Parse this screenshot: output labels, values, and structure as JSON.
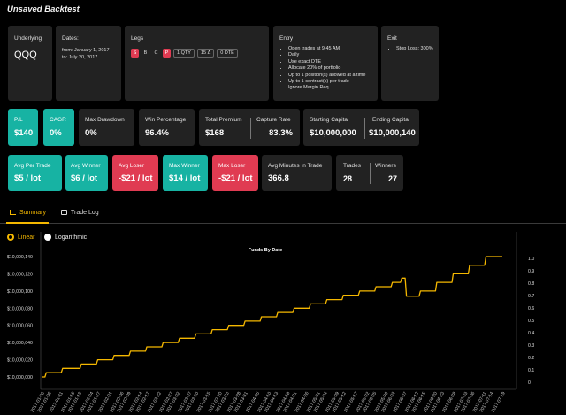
{
  "page": {
    "title": "Unsaved Backtest"
  },
  "info": {
    "underlying": {
      "label": "Underlying",
      "value": "QQQ"
    },
    "dates": {
      "label": "Dates:",
      "from": "from: January 1, 2017",
      "to": "to: July 20, 2017"
    },
    "legs": {
      "label": "Legs",
      "chips": [
        "S",
        "B",
        "C",
        "P"
      ],
      "qty": "1",
      "qty_unit": "QTY",
      "delta": "15",
      "delta_symbol": "Δ",
      "dte": "0",
      "dte_unit": "DTE"
    },
    "entry": {
      "label": "Entry",
      "items": [
        "Open trades at 9:45 AM",
        "Daily",
        "Use exact DTE",
        "Allocate 20% of portfolio",
        "Up to 1 position(s) allowed at a time",
        "Up to 1 contract(s) per trade",
        "Ignore Margin Req."
      ]
    },
    "exit": {
      "label": "Exit",
      "items": [
        "Stop Loss: 300%"
      ]
    }
  },
  "stats": {
    "pl": {
      "label": "P/L",
      "value": "$140"
    },
    "cagr": {
      "label": "CAGR",
      "value": "0%"
    },
    "max_drawdown": {
      "label": "Max Drawdown",
      "value": "0%"
    },
    "win_percentage": {
      "label": "Win Percentage",
      "value": "96.4%"
    },
    "total_premium": {
      "label": "Total Premium",
      "value": "$168"
    },
    "capture_rate": {
      "label": "Capture Rate",
      "value": "83.3%"
    },
    "starting_capital": {
      "label": "Starting Capital",
      "value": "$10,000,000"
    },
    "ending_capital": {
      "label": "Ending Capital",
      "value": "$10,000,140"
    },
    "avg_per_trade": {
      "label": "Avg Per Trade",
      "value": "$5 / lot"
    },
    "avg_winner": {
      "label": "Avg Winner",
      "value": "$6 / lot"
    },
    "avg_loser": {
      "label": "Avg Loser",
      "value": "-$21 / lot"
    },
    "max_winner": {
      "label": "Max Winner",
      "value": "$14 / lot"
    },
    "max_loser": {
      "label": "Max Loser",
      "value": "-$21 / lot"
    },
    "avg_minutes": {
      "label": "Avg Minutes In Trade",
      "value": "366.8"
    },
    "trades": {
      "label": "Trades",
      "value": "28"
    },
    "winners": {
      "label": "Winners",
      "value": "27"
    }
  },
  "tabs": [
    {
      "label": "Summary",
      "icon": "bar-chart-icon",
      "active": true
    },
    {
      "label": "Trade Log",
      "icon": "tray-icon",
      "active": false
    }
  ],
  "scale": {
    "linear": "Linear",
    "logarithmic": "Logarithmic",
    "selected": "Linear"
  },
  "colors": {
    "teal": "#17b3a3",
    "red": "#e03b52",
    "accent": "#f5b800",
    "card": "#222222"
  },
  "chart_data": {
    "type": "line",
    "title": "Funds By Date",
    "xlabel": "",
    "ylabel": "",
    "ylim": [
      10000000,
      10000140
    ],
    "y_ticks": [
      "$10,000,000",
      "$10,000,020",
      "$10,000,040",
      "$10,000,060",
      "$10,000,080",
      "$10,000,100",
      "$10,000,120",
      "$10,000,140"
    ],
    "right_axis_ticks": [
      "0",
      "0.1",
      "0.2",
      "0.3",
      "0.4",
      "0.5",
      "0.6",
      "0.7",
      "0.8",
      "0.9",
      "1.0"
    ],
    "x_ticks": [
      "2017-01-03",
      "2017-01-06",
      "2017-01-11",
      "2017-01-16",
      "2017-01-19",
      "2017-01-24",
      "2017-01-27",
      "2017-02-01",
      "2017-02-06",
      "2017-02-09",
      "2017-02-14",
      "2017-02-17",
      "2017-02-22",
      "2017-02-27",
      "2017-03-02",
      "2017-03-07",
      "2017-03-10",
      "2017-03-15",
      "2017-03-20",
      "2017-03-23",
      "2017-03-28",
      "2017-03-31",
      "2017-04-05",
      "2017-04-10",
      "2017-04-13",
      "2017-04-18",
      "2017-04-21",
      "2017-04-26",
      "2017-05-01",
      "2017-05-04",
      "2017-05-09",
      "2017-05-12",
      "2017-05-17",
      "2017-05-22",
      "2017-05-25",
      "2017-05-30",
      "2017-06-02",
      "2017-06-07",
      "2017-06-12",
      "2017-06-15",
      "2017-06-20",
      "2017-06-23",
      "2017-06-28",
      "2017-07-03",
      "2017-07-06",
      "2017-07-11",
      "2017-07-14",
      "2017-07-19"
    ],
    "series": [
      {
        "color": "#f5b800",
        "x": [
          "2017-01-03",
          "2017-01-05",
          "2017-01-12",
          "2017-01-20",
          "2017-01-27",
          "2017-02-03",
          "2017-02-10",
          "2017-02-17",
          "2017-02-24",
          "2017-03-03",
          "2017-03-10",
          "2017-03-17",
          "2017-03-24",
          "2017-03-31",
          "2017-04-07",
          "2017-04-14",
          "2017-04-21",
          "2017-04-28",
          "2017-05-05",
          "2017-05-12",
          "2017-05-19",
          "2017-05-26",
          "2017-06-02",
          "2017-06-06",
          "2017-06-08",
          "2017-06-14",
          "2017-06-21",
          "2017-06-28",
          "2017-07-05",
          "2017-07-12",
          "2017-07-19"
        ],
        "y": [
          10000000,
          10000005,
          10000010,
          10000015,
          10000020,
          10000025,
          10000030,
          10000035,
          10000040,
          10000045,
          10000050,
          10000055,
          10000060,
          10000065,
          10000070,
          10000075,
          10000080,
          10000085,
          10000090,
          10000095,
          10000100,
          10000105,
          10000110,
          10000115,
          10000094,
          10000100,
          10000110,
          10000120,
          10000130,
          10000140,
          10000140
        ]
      }
    ]
  }
}
